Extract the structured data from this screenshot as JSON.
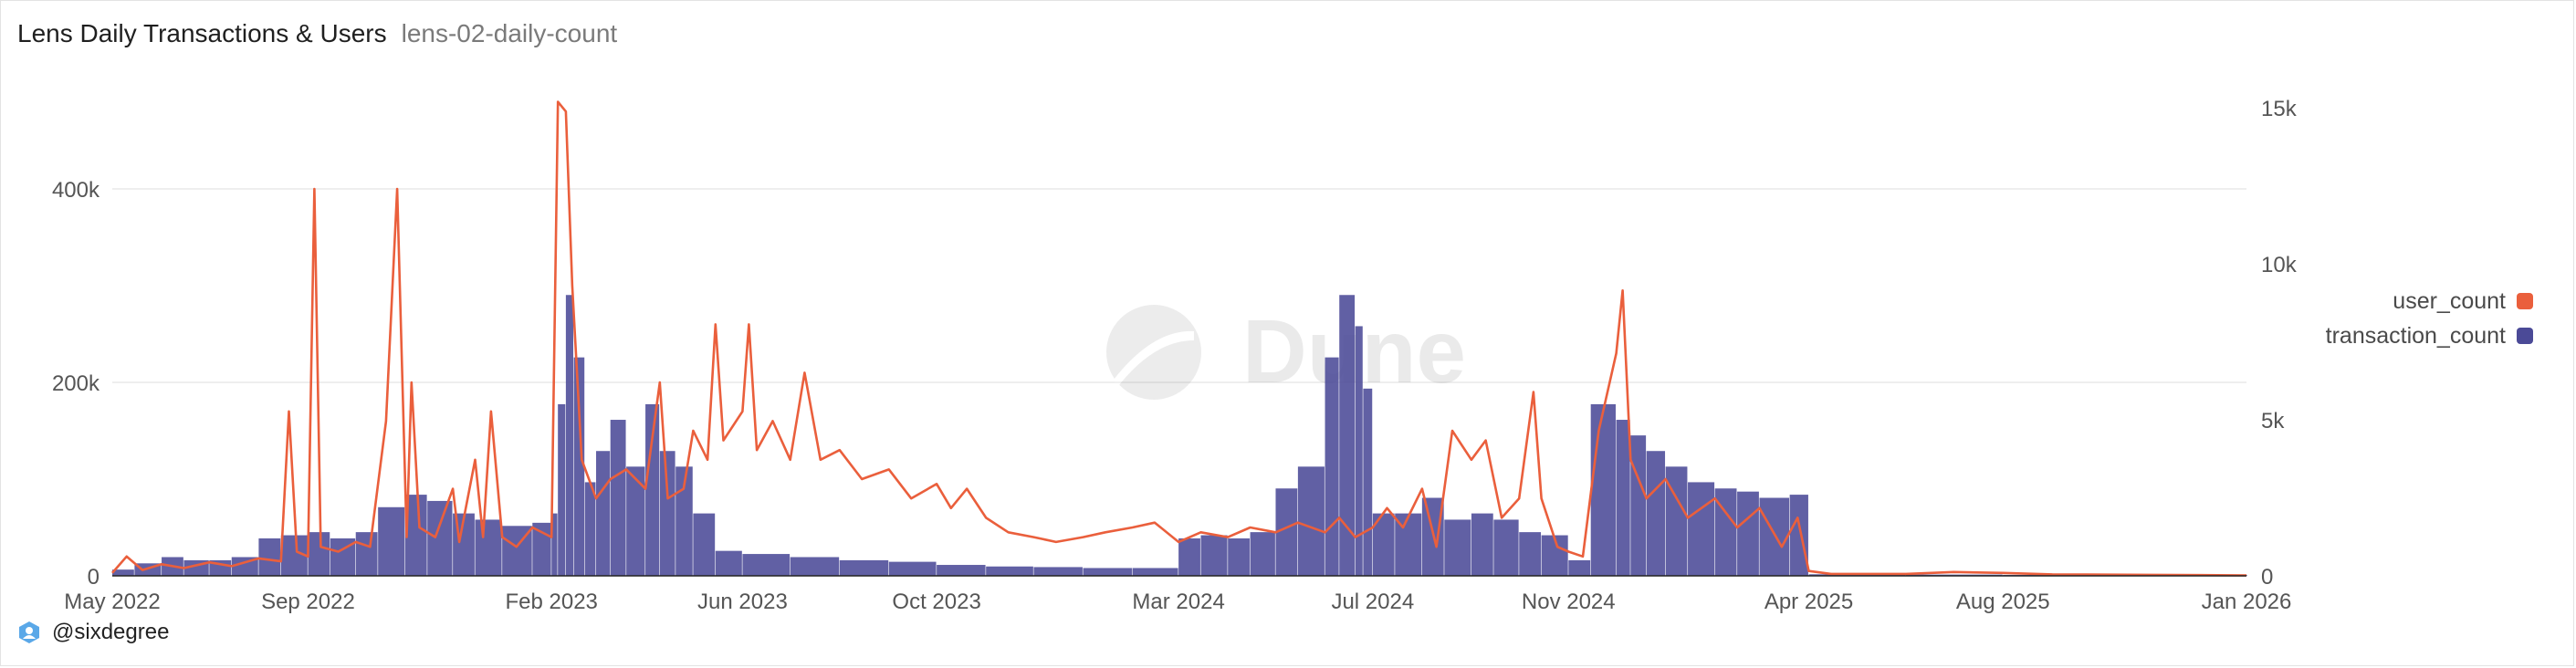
{
  "header": {
    "title": "Lens Daily Transactions & Users",
    "subtitle": "lens-02-daily-count"
  },
  "footer": {
    "author": "@sixdegree"
  },
  "watermark": {
    "text": "Dune"
  },
  "colors": {
    "user_count": "#ea5f3c",
    "transaction_count": "#4b4a97",
    "grid": "#e8e8e8"
  },
  "chart_data": {
    "type": "bar+line",
    "x_type": "date",
    "xlim": [
      "2022-05-01",
      "2026-01-01"
    ],
    "x_ticks": [
      "May 2022",
      "Sep 2022",
      "Feb 2023",
      "Jun 2023",
      "Oct 2023",
      "Mar 2024",
      "Jul 2024",
      "Nov 2024",
      "Apr 2025",
      "Aug 2025",
      "Jan 2026"
    ],
    "x_tick_dates": [
      "2022-05-01",
      "2022-09-01",
      "2023-02-01",
      "2023-06-01",
      "2023-10-01",
      "2024-03-01",
      "2024-07-01",
      "2024-11-01",
      "2025-04-01",
      "2025-08-01",
      "2026-01-01"
    ],
    "y_left": {
      "lim": [
        0,
        500000
      ],
      "ticks": [
        0,
        200000,
        400000
      ],
      "tick_labels": [
        "0",
        "200k",
        "400k"
      ]
    },
    "y_right": {
      "lim": [
        0,
        15500
      ],
      "ticks": [
        0,
        5000,
        10000,
        15000
      ],
      "tick_labels": [
        "0",
        "5k",
        "10k",
        "15k"
      ]
    },
    "grid": true,
    "legend_position": "right",
    "series": [
      {
        "name": "user_count",
        "kind": "line",
        "axis": "left",
        "points": [
          [
            "2022-05-01",
            3000
          ],
          [
            "2022-05-10",
            20000
          ],
          [
            "2022-05-20",
            6000
          ],
          [
            "2022-06-01",
            12000
          ],
          [
            "2022-06-15",
            8000
          ],
          [
            "2022-07-01",
            14000
          ],
          [
            "2022-07-15",
            10000
          ],
          [
            "2022-08-01",
            18000
          ],
          [
            "2022-08-15",
            15000
          ],
          [
            "2022-08-20",
            170000
          ],
          [
            "2022-08-25",
            25000
          ],
          [
            "2022-09-01",
            20000
          ],
          [
            "2022-09-05",
            400000
          ],
          [
            "2022-09-09",
            30000
          ],
          [
            "2022-09-20",
            25000
          ],
          [
            "2022-10-01",
            35000
          ],
          [
            "2022-10-10",
            30000
          ],
          [
            "2022-10-20",
            160000
          ],
          [
            "2022-10-27",
            400000
          ],
          [
            "2022-11-02",
            40000
          ],
          [
            "2022-11-05",
            200000
          ],
          [
            "2022-11-10",
            50000
          ],
          [
            "2022-11-20",
            40000
          ],
          [
            "2022-12-01",
            90000
          ],
          [
            "2022-12-05",
            35000
          ],
          [
            "2022-12-15",
            120000
          ],
          [
            "2022-12-20",
            40000
          ],
          [
            "2022-12-25",
            170000
          ],
          [
            "2023-01-01",
            40000
          ],
          [
            "2023-01-10",
            30000
          ],
          [
            "2023-01-20",
            50000
          ],
          [
            "2023-02-01",
            40000
          ],
          [
            "2023-02-05",
            490000
          ],
          [
            "2023-02-10",
            480000
          ],
          [
            "2023-02-14",
            300000
          ],
          [
            "2023-02-20",
            120000
          ],
          [
            "2023-03-01",
            80000
          ],
          [
            "2023-03-10",
            100000
          ],
          [
            "2023-03-20",
            110000
          ],
          [
            "2023-04-01",
            90000
          ],
          [
            "2023-04-10",
            200000
          ],
          [
            "2023-04-15",
            80000
          ],
          [
            "2023-04-25",
            90000
          ],
          [
            "2023-05-01",
            150000
          ],
          [
            "2023-05-10",
            120000
          ],
          [
            "2023-05-15",
            260000
          ],
          [
            "2023-05-20",
            140000
          ],
          [
            "2023-06-01",
            170000
          ],
          [
            "2023-06-05",
            260000
          ],
          [
            "2023-06-10",
            130000
          ],
          [
            "2023-06-20",
            160000
          ],
          [
            "2023-07-01",
            120000
          ],
          [
            "2023-07-10",
            210000
          ],
          [
            "2023-07-20",
            120000
          ],
          [
            "2023-08-01",
            130000
          ],
          [
            "2023-08-15",
            100000
          ],
          [
            "2023-09-01",
            110000
          ],
          [
            "2023-09-15",
            80000
          ],
          [
            "2023-10-01",
            95000
          ],
          [
            "2023-10-10",
            70000
          ],
          [
            "2023-10-20",
            90000
          ],
          [
            "2023-11-01",
            60000
          ],
          [
            "2023-11-15",
            45000
          ],
          [
            "2023-12-01",
            40000
          ],
          [
            "2023-12-15",
            35000
          ],
          [
            "2024-01-01",
            40000
          ],
          [
            "2024-01-15",
            45000
          ],
          [
            "2024-02-01",
            50000
          ],
          [
            "2024-02-15",
            55000
          ],
          [
            "2024-03-01",
            35000
          ],
          [
            "2024-03-15",
            45000
          ],
          [
            "2024-04-01",
            40000
          ],
          [
            "2024-04-15",
            50000
          ],
          [
            "2024-05-01",
            45000
          ],
          [
            "2024-05-15",
            55000
          ],
          [
            "2024-06-01",
            45000
          ],
          [
            "2024-06-10",
            60000
          ],
          [
            "2024-06-20",
            40000
          ],
          [
            "2024-07-01",
            50000
          ],
          [
            "2024-07-10",
            70000
          ],
          [
            "2024-07-20",
            50000
          ],
          [
            "2024-08-01",
            90000
          ],
          [
            "2024-08-10",
            30000
          ],
          [
            "2024-08-20",
            150000
          ],
          [
            "2024-09-01",
            120000
          ],
          [
            "2024-09-10",
            140000
          ],
          [
            "2024-09-20",
            60000
          ],
          [
            "2024-10-01",
            80000
          ],
          [
            "2024-10-10",
            190000
          ],
          [
            "2024-10-15",
            80000
          ],
          [
            "2024-10-25",
            30000
          ],
          [
            "2024-11-01",
            25000
          ],
          [
            "2024-11-10",
            20000
          ],
          [
            "2024-11-20",
            150000
          ],
          [
            "2024-12-01",
            230000
          ],
          [
            "2024-12-05",
            295000
          ],
          [
            "2024-12-10",
            120000
          ],
          [
            "2024-12-20",
            80000
          ],
          [
            "2025-01-01",
            100000
          ],
          [
            "2025-01-15",
            60000
          ],
          [
            "2025-02-01",
            80000
          ],
          [
            "2025-02-15",
            50000
          ],
          [
            "2025-03-01",
            70000
          ],
          [
            "2025-03-15",
            30000
          ],
          [
            "2025-03-25",
            60000
          ],
          [
            "2025-04-01",
            5000
          ],
          [
            "2025-04-15",
            2000
          ],
          [
            "2025-06-01",
            2000
          ],
          [
            "2025-07-01",
            4000
          ],
          [
            "2025-08-01",
            3000
          ],
          [
            "2025-09-01",
            1500
          ],
          [
            "2025-11-01",
            1000
          ],
          [
            "2026-01-01",
            500
          ]
        ]
      },
      {
        "name": "transaction_count",
        "kind": "bar",
        "axis": "right",
        "points": [
          [
            "2022-05-01",
            200
          ],
          [
            "2022-05-15",
            400
          ],
          [
            "2022-06-01",
            600
          ],
          [
            "2022-06-15",
            500
          ],
          [
            "2022-07-01",
            500
          ],
          [
            "2022-07-15",
            600
          ],
          [
            "2022-08-01",
            1200
          ],
          [
            "2022-08-15",
            1300
          ],
          [
            "2022-09-01",
            1400
          ],
          [
            "2022-09-15",
            1200
          ],
          [
            "2022-10-01",
            1400
          ],
          [
            "2022-10-15",
            2200
          ],
          [
            "2022-11-01",
            2600
          ],
          [
            "2022-11-15",
            2400
          ],
          [
            "2022-12-01",
            2000
          ],
          [
            "2022-12-15",
            1800
          ],
          [
            "2023-01-01",
            1600
          ],
          [
            "2023-01-20",
            1700
          ],
          [
            "2023-02-01",
            2000
          ],
          [
            "2023-02-05",
            5500
          ],
          [
            "2023-02-10",
            9000
          ],
          [
            "2023-02-15",
            7000
          ],
          [
            "2023-02-22",
            3000
          ],
          [
            "2023-03-01",
            4000
          ],
          [
            "2023-03-10",
            5000
          ],
          [
            "2023-03-20",
            3500
          ],
          [
            "2023-04-01",
            5500
          ],
          [
            "2023-04-10",
            4000
          ],
          [
            "2023-04-20",
            3500
          ],
          [
            "2023-05-01",
            2000
          ],
          [
            "2023-05-15",
            800
          ],
          [
            "2023-06-01",
            700
          ],
          [
            "2023-07-01",
            600
          ],
          [
            "2023-08-01",
            500
          ],
          [
            "2023-09-01",
            450
          ],
          [
            "2023-10-01",
            350
          ],
          [
            "2023-11-01",
            300
          ],
          [
            "2023-12-01",
            280
          ],
          [
            "2024-01-01",
            250
          ],
          [
            "2024-02-01",
            250
          ],
          [
            "2024-03-01",
            1200
          ],
          [
            "2024-03-15",
            1300
          ],
          [
            "2024-04-01",
            1200
          ],
          [
            "2024-04-15",
            1400
          ],
          [
            "2024-05-01",
            2800
          ],
          [
            "2024-05-15",
            3500
          ],
          [
            "2024-06-01",
            7000
          ],
          [
            "2024-06-10",
            9000
          ],
          [
            "2024-06-20",
            8000
          ],
          [
            "2024-06-25",
            6000
          ],
          [
            "2024-07-01",
            2000
          ],
          [
            "2024-07-15",
            2000
          ],
          [
            "2024-08-01",
            2500
          ],
          [
            "2024-08-15",
            1800
          ],
          [
            "2024-09-01",
            2000
          ],
          [
            "2024-09-15",
            1800
          ],
          [
            "2024-10-01",
            1400
          ],
          [
            "2024-10-15",
            1300
          ],
          [
            "2024-11-01",
            500
          ],
          [
            "2024-11-15",
            5500
          ],
          [
            "2024-12-01",
            5000
          ],
          [
            "2024-12-10",
            4500
          ],
          [
            "2024-12-20",
            4000
          ],
          [
            "2025-01-01",
            3500
          ],
          [
            "2025-01-15",
            3000
          ],
          [
            "2025-02-01",
            2800
          ],
          [
            "2025-02-15",
            2700
          ],
          [
            "2025-03-01",
            2500
          ],
          [
            "2025-03-20",
            2600
          ],
          [
            "2025-04-01",
            50
          ],
          [
            "2025-06-01",
            40
          ],
          [
            "2025-08-01",
            30
          ],
          [
            "2025-10-01",
            25
          ],
          [
            "2026-01-01",
            20
          ]
        ]
      }
    ]
  }
}
